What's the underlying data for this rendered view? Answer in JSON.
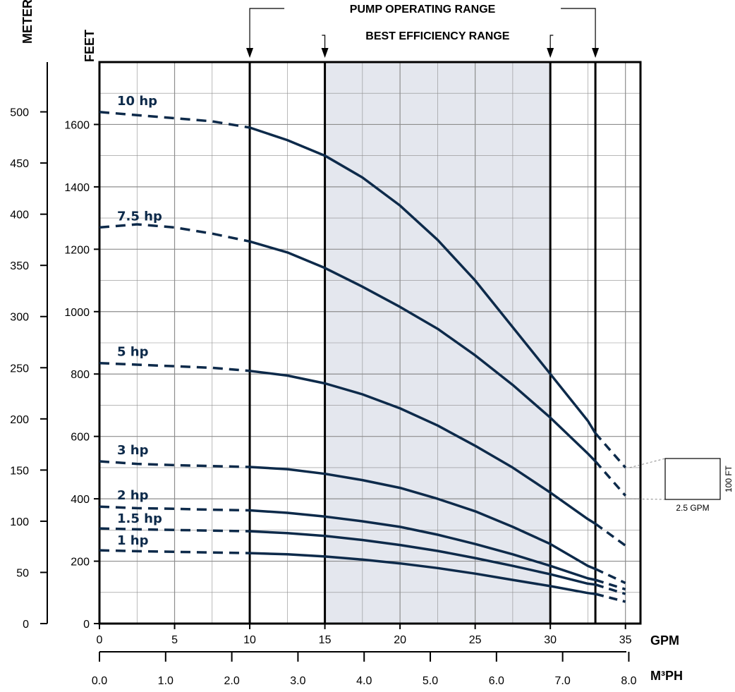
{
  "chart_data": {
    "type": "line",
    "xlabel": "GPM",
    "xlabel_secondary": "M³PH",
    "ylabel": "FEET",
    "ylabel_secondary": "METERS",
    "xlim": [
      0,
      36
    ],
    "ylim": [
      0,
      1800
    ],
    "x_ticks": [
      0,
      5,
      10,
      15,
      20,
      25,
      30,
      35
    ],
    "y_ticks": [
      0,
      200,
      400,
      600,
      800,
      1000,
      1200,
      1400,
      1600
    ],
    "meter_ticks": [
      0,
      50,
      100,
      150,
      200,
      250,
      300,
      350,
      400,
      450,
      500
    ],
    "m3ph_ticks": [
      "0.0",
      "1.0",
      "2.0",
      "3.0",
      "4.0",
      "5.0",
      "6.0",
      "7.0",
      "8.0"
    ],
    "grid": true,
    "ranges": [
      {
        "label": "PUMP OPERATING RANGE",
        "from": 10,
        "to": 33
      },
      {
        "label": "BEST EFFICIENCY RANGE",
        "from": 15,
        "to": 30
      }
    ],
    "scale_box": {
      "width_label": "2.5 GPM",
      "height_label": "100 FT"
    },
    "series": [
      {
        "name": "10 hp",
        "x": [
          0,
          2.5,
          5,
          7.5,
          10,
          12.5,
          15,
          17.5,
          20,
          22.5,
          25,
          27.5,
          30,
          32.5,
          33,
          35
        ],
        "y": [
          1640,
          1630,
          1620,
          1610,
          1590,
          1550,
          1500,
          1430,
          1340,
          1230,
          1100,
          950,
          800,
          650,
          610,
          500
        ]
      },
      {
        "name": "7.5 hp",
        "x": [
          0,
          2.5,
          5,
          7.5,
          10,
          12.5,
          15,
          17.5,
          20,
          22.5,
          25,
          27.5,
          30,
          32.5,
          33,
          35
        ],
        "y": [
          1270,
          1280,
          1270,
          1250,
          1225,
          1190,
          1140,
          1080,
          1015,
          945,
          860,
          765,
          660,
          545,
          520,
          410
        ]
      },
      {
        "name": "5 hp",
        "x": [
          0,
          2.5,
          5,
          7.5,
          10,
          12.5,
          15,
          17.5,
          20,
          22.5,
          25,
          27.5,
          30,
          32.5,
          33,
          35
        ],
        "y": [
          835,
          830,
          825,
          820,
          810,
          795,
          770,
          735,
          690,
          635,
          570,
          500,
          420,
          335,
          320,
          250
        ]
      },
      {
        "name": "3 hp",
        "x": [
          0,
          2.5,
          5,
          7.5,
          10,
          12.5,
          15,
          17.5,
          20,
          22.5,
          25,
          27.5,
          30,
          32.5,
          33,
          35
        ],
        "y": [
          520,
          512,
          508,
          505,
          502,
          495,
          480,
          460,
          435,
          400,
          360,
          310,
          255,
          185,
          175,
          130
        ]
      },
      {
        "name": "2 hp",
        "x": [
          0,
          2.5,
          5,
          7.5,
          10,
          12.5,
          15,
          17.5,
          20,
          22.5,
          25,
          27.5,
          30,
          32.5,
          33,
          35
        ],
        "y": [
          375,
          370,
          368,
          365,
          363,
          355,
          343,
          328,
          310,
          285,
          255,
          222,
          185,
          145,
          140,
          110
        ]
      },
      {
        "name": "1.5 hp",
        "x": [
          0,
          2.5,
          5,
          7.5,
          10,
          12.5,
          15,
          17.5,
          20,
          22.5,
          25,
          27.5,
          30,
          32.5,
          33,
          35
        ],
        "y": [
          305,
          302,
          300,
          298,
          296,
          290,
          281,
          268,
          252,
          233,
          210,
          185,
          158,
          128,
          125,
          95
        ]
      },
      {
        "name": "1 hp",
        "x": [
          0,
          2.5,
          5,
          7.5,
          10,
          12.5,
          15,
          17.5,
          20,
          22.5,
          25,
          27.5,
          30,
          32.5,
          33,
          35
        ],
        "y": [
          235,
          232,
          230,
          228,
          226,
          222,
          215,
          205,
          193,
          178,
          160,
          140,
          120,
          98,
          95,
          70
        ]
      }
    ]
  }
}
